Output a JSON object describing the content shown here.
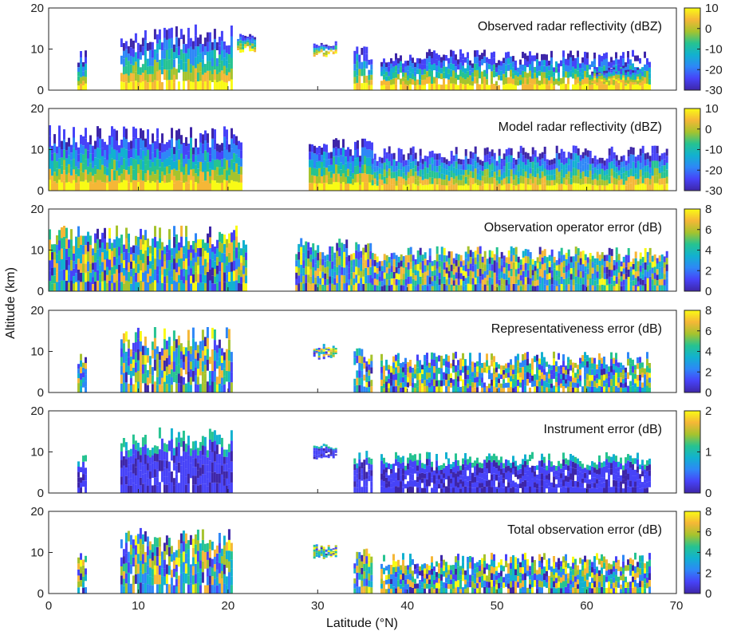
{
  "chart_data": {
    "type": "heatmap",
    "xlabel": "Latitude (°N)",
    "ylabel": "Altitude (km)",
    "x_range": [
      0,
      70
    ],
    "x_ticks": [
      "0",
      "10",
      "20",
      "30",
      "40",
      "50",
      "60",
      "70"
    ],
    "y_range": [
      0,
      20
    ],
    "y_ticks": [
      "0",
      "10",
      "20"
    ],
    "colormap": [
      "#3e26a8",
      "#4743f8",
      "#2e87f7",
      "#12b1d0",
      "#26c391",
      "#a6c32d",
      "#f5b737",
      "#f9fb15"
    ],
    "panels": [
      {
        "title": "Observed radar reflectivity (dBZ)",
        "colorbar_ticks": [
          "10",
          "0",
          "-10",
          "-20",
          "-30"
        ],
        "range": [
          -30,
          10
        ],
        "cloud_regions": [
          {
            "lat": [
              3.2,
              4.2
            ],
            "alt": [
              0,
              10
            ]
          },
          {
            "lat": [
              8,
              20.5
            ],
            "alt": [
              0,
              16
            ]
          },
          {
            "lat": [
              21,
              23
            ],
            "alt": [
              9,
              14
            ]
          },
          {
            "lat": [
              29.5,
              32
            ],
            "alt": [
              8,
              12
            ]
          },
          {
            "lat": [
              34,
              36
            ],
            "alt": [
              0,
              11
            ]
          },
          {
            "lat": [
              37,
              67
            ],
            "alt": [
              0,
              10
            ]
          },
          {
            "lat": [
              60.5,
              66
            ],
            "alt": [
              1,
              6
            ]
          }
        ]
      },
      {
        "title": "Model radar reflectivity (dBZ)",
        "colorbar_ticks": [
          "10",
          "0",
          "-10",
          "-20",
          "-30"
        ],
        "range": [
          -30,
          10
        ],
        "cloud_regions": [
          {
            "lat": [
              0,
              21.5
            ],
            "alt": [
              0,
              16
            ]
          },
          {
            "lat": [
              29,
              36
            ],
            "alt": [
              0,
              13
            ]
          },
          {
            "lat": [
              36,
              69
            ],
            "alt": [
              0,
              11
            ]
          }
        ]
      },
      {
        "title": "Observation operator error (dB)",
        "colorbar_ticks": [
          "8",
          "6",
          "4",
          "2",
          "0"
        ],
        "range": [
          0,
          8
        ],
        "cloud_regions": [
          {
            "lat": [
              0,
              22
            ],
            "alt": [
              0,
              16
            ]
          },
          {
            "lat": [
              27.5,
              36
            ],
            "alt": [
              0,
              13
            ]
          },
          {
            "lat": [
              36,
              69
            ],
            "alt": [
              0,
              11
            ]
          }
        ]
      },
      {
        "title": "Representativeness error (dB)",
        "colorbar_ticks": [
          "8",
          "6",
          "4",
          "2",
          "0"
        ],
        "range": [
          0,
          8
        ],
        "cloud_regions": [
          {
            "lat": [
              3.2,
              4.2
            ],
            "alt": [
              0,
              10
            ]
          },
          {
            "lat": [
              8,
              20.5
            ],
            "alt": [
              0,
              16
            ]
          },
          {
            "lat": [
              29.5,
              32
            ],
            "alt": [
              8,
              12
            ]
          },
          {
            "lat": [
              34,
              36
            ],
            "alt": [
              0,
              11
            ]
          },
          {
            "lat": [
              37,
              67
            ],
            "alt": [
              0,
              10
            ]
          }
        ]
      },
      {
        "title": "Instrument error (dB)",
        "colorbar_ticks": [
          "2",
          "1",
          "0"
        ],
        "range": [
          0,
          2
        ],
        "cloud_regions": [
          {
            "lat": [
              3.2,
              4.2
            ],
            "alt": [
              0,
              10
            ]
          },
          {
            "lat": [
              8,
              20.5
            ],
            "alt": [
              0,
              16
            ]
          },
          {
            "lat": [
              29.5,
              32
            ],
            "alt": [
              8,
              12
            ]
          },
          {
            "lat": [
              34,
              36
            ],
            "alt": [
              0,
              11
            ]
          },
          {
            "lat": [
              37,
              67
            ],
            "alt": [
              0,
              10
            ]
          }
        ]
      },
      {
        "title": "Total observation error (dB)",
        "colorbar_ticks": [
          "8",
          "6",
          "4",
          "2",
          "0"
        ],
        "range": [
          0,
          8
        ],
        "cloud_regions": [
          {
            "lat": [
              3.2,
              4.2
            ],
            "alt": [
              0,
              10
            ]
          },
          {
            "lat": [
              8,
              20.5
            ],
            "alt": [
              0,
              16
            ]
          },
          {
            "lat": [
              29.5,
              32
            ],
            "alt": [
              8,
              12
            ]
          },
          {
            "lat": [
              34,
              36
            ],
            "alt": [
              0,
              11
            ]
          },
          {
            "lat": [
              37,
              67
            ],
            "alt": [
              0,
              10
            ]
          }
        ]
      }
    ]
  }
}
